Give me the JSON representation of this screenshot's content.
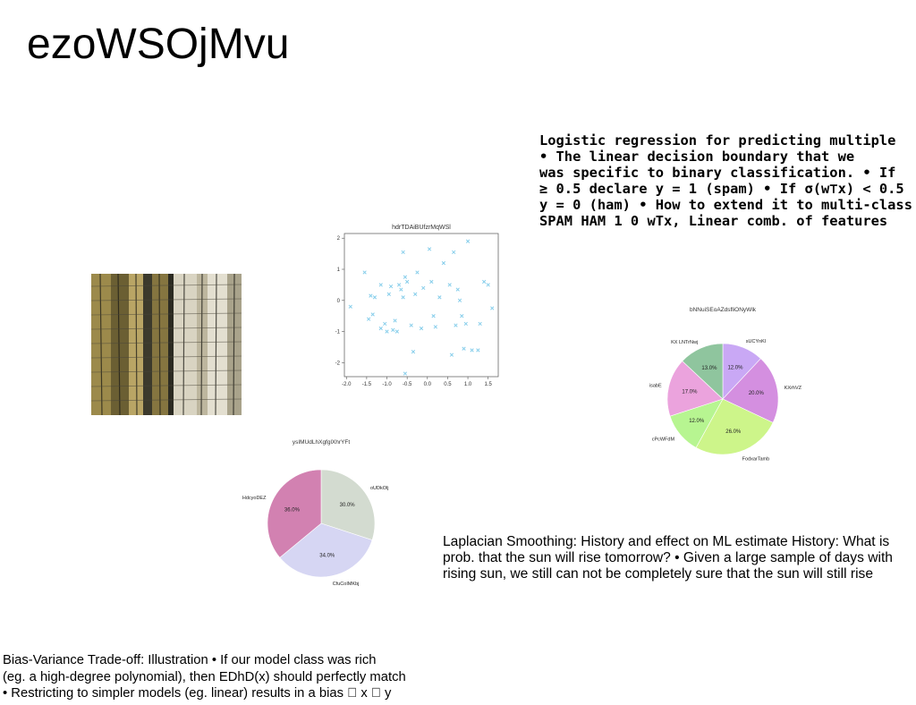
{
  "slide": {
    "title": "ezoWSOjMvu",
    "logistic_text": "Logistic regression for predicting multiple\n• The linear decision boundary that we\nwas specific to binary classification. • If\n≥ 0.5 declare y = 1 (spam) • If σ(w⊤x) < 0.5\ny = 0 (ham) • How to extend it to multi-class\nSPAM HAM 1 0 wTx, Linear comb. of features",
    "laplace_text": "Laplacian Smoothing: History and effect on ML estimate History: What is\nprob. that the sun will rise tomorrow? • Given a large sample of days with\nrising sun, we still can not be completely sure that the sun will still rise",
    "bias_text": "Bias-Variance Trade-off: Illustration • If our model class was rich\n(eg. a high-degree polynomial), then EDhD(x) should perfectly match\n• Restricting to simpler models (eg. linear) results in a bias \u0000 x \u0000 y"
  },
  "chart_data": [
    {
      "type": "scatter",
      "title": "hdrTDAiBUfzrMqWSl",
      "xlim": [
        -2.05,
        1.75
      ],
      "ylim": [
        -2.45,
        2.15
      ],
      "xticks": [
        "-2.0",
        "-1.5",
        "-1.0",
        "-0.5",
        "0.0",
        "0.5",
        "1.0",
        "1.5"
      ],
      "xtick_values": [
        -2.0,
        -1.5,
        -1.0,
        -0.5,
        0.0,
        0.5,
        1.0,
        1.5
      ],
      "yticks": [
        "2",
        "1",
        "0",
        "-1",
        "-2"
      ],
      "ytick_values": [
        2,
        1,
        0,
        -1,
        -2
      ],
      "marker": "x",
      "color": "#87ceeb",
      "grid": false,
      "points": [
        [
          -1.9,
          -0.2
        ],
        [
          -1.55,
          0.9
        ],
        [
          -1.45,
          -0.6
        ],
        [
          -1.4,
          0.15
        ],
        [
          -1.35,
          -0.45
        ],
        [
          -1.3,
          0.1
        ],
        [
          -1.15,
          0.5
        ],
        [
          -1.05,
          -0.75
        ],
        [
          -1.0,
          -1.0
        ],
        [
          -0.95,
          0.2
        ],
        [
          -0.9,
          0.45
        ],
        [
          -0.85,
          -0.95
        ],
        [
          -0.8,
          -0.65
        ],
        [
          -0.75,
          -1.0
        ],
        [
          -0.7,
          0.5
        ],
        [
          -0.65,
          0.35
        ],
        [
          -0.6,
          0.1
        ],
        [
          -0.55,
          0.75
        ],
        [
          -0.55,
          -2.35
        ],
        [
          -0.5,
          0.6
        ],
        [
          -0.4,
          -0.8
        ],
        [
          -0.35,
          -1.65
        ],
        [
          -0.3,
          0.2
        ],
        [
          -0.25,
          0.9
        ],
        [
          -0.15,
          -0.9
        ],
        [
          -0.1,
          0.4
        ],
        [
          0.05,
          1.65
        ],
        [
          0.1,
          0.6
        ],
        [
          0.2,
          -0.85
        ],
        [
          0.3,
          0.1
        ],
        [
          0.4,
          1.2
        ],
        [
          0.55,
          0.5
        ],
        [
          0.6,
          -1.75
        ],
        [
          0.65,
          1.55
        ],
        [
          0.7,
          -0.8
        ],
        [
          0.75,
          0.35
        ],
        [
          0.85,
          -0.5
        ],
        [
          0.9,
          -1.55
        ],
        [
          0.95,
          -0.75
        ],
        [
          1.0,
          1.9
        ],
        [
          1.1,
          -1.6
        ],
        [
          1.25,
          -1.6
        ],
        [
          1.3,
          -0.75
        ],
        [
          1.4,
          0.6
        ],
        [
          1.5,
          0.5
        ],
        [
          1.6,
          -0.25
        ],
        [
          -0.6,
          1.55
        ],
        [
          0.8,
          0.0
        ],
        [
          -1.15,
          -0.9
        ],
        [
          0.15,
          -0.5
        ]
      ]
    },
    {
      "type": "pie",
      "title": "bNNuiSEoAZdsfliONyWlk",
      "labels": [
        "sUCYnKl",
        "KXrhVZ",
        "FodxarTamb",
        "cPcWFdM",
        "isabE",
        "KX LNTrNwj"
      ],
      "values": [
        12.0,
        20.0,
        26.0,
        12.0,
        17.0,
        13.0
      ],
      "pct_labels": [
        "12.0%",
        "20.0%",
        "26.0%",
        "12.0%",
        "17.0%",
        "13.0%"
      ],
      "colors": [
        "#c9a8f5",
        "#d48fe0",
        "#cdf58a",
        "#b7f591",
        "#eba3dd",
        "#8fc59e"
      ]
    },
    {
      "type": "pie",
      "title": "ysIMUdLhXgfglXhrYFt",
      "labels": [
        "oUDkOlj",
        "CfuCoIMKbj",
        "HdcyoDEZ"
      ],
      "values": [
        30.0,
        34.0,
        36.0
      ],
      "pct_labels": [
        "30.0%",
        "34.0%",
        "36.0%"
      ],
      "colors": [
        "#d3dbd0",
        "#d6d6f3",
        "#d281b1"
      ]
    }
  ],
  "image": {
    "icon": "building-facade-photo",
    "colors": [
      "#8a7a45",
      "#d8d2bf",
      "#3b3a2a",
      "#b9ae86"
    ]
  }
}
